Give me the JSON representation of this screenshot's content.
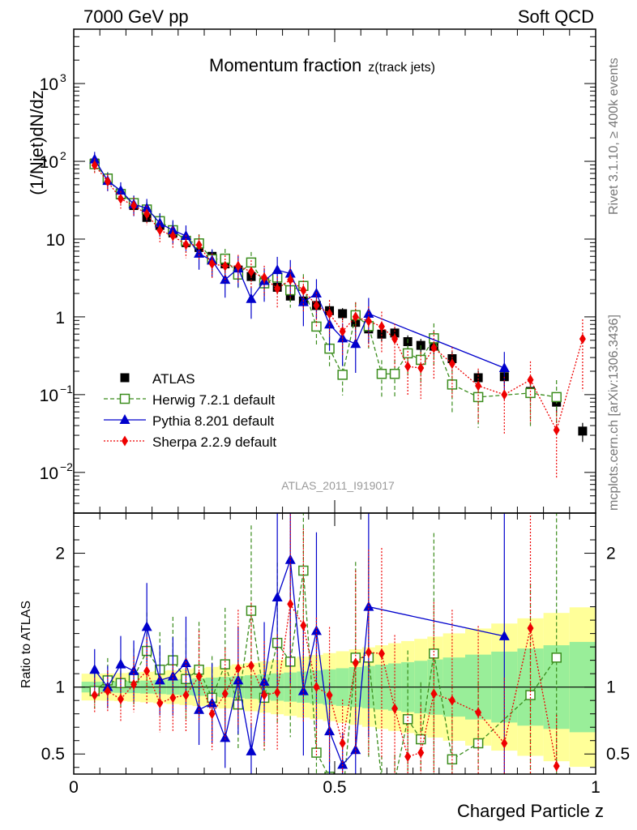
{
  "header": {
    "left": "7000 GeV pp",
    "right": "Soft QCD"
  },
  "side_text": {
    "rivet": "Rivet 3.1.10, ≥ 400k events",
    "mcplots": "mcplots.cern.ch [arXiv:1306.3436]"
  },
  "chart_data": [
    {
      "type": "scatter",
      "panel": "main",
      "title": "Momentum fraction",
      "title_sub": "z(track jets)",
      "ylabel": "(1/Njet)dN/dz",
      "yscale": "log",
      "ylim": [
        0.003,
        5000
      ],
      "xlim": [
        0,
        1
      ],
      "watermark": "ATLAS_2011_I919017",
      "y_ticks": [
        "10^{-2}",
        "10^{-1}",
        "1",
        "10",
        "10^{2}",
        "10^{3}"
      ],
      "legend": [
        "ATLAS",
        "Herwig 7.2.1 default",
        "Pythia 8.201 default",
        "Sherpa 2.2.9 default"
      ],
      "legend_position": "center-left",
      "colors": {
        "atlas": "#000000",
        "herwig": "#3a8c1c",
        "pythia": "#0000cc",
        "sherpa": "#ee0000"
      },
      "x": [
        0.04,
        0.065,
        0.09,
        0.115,
        0.14,
        0.165,
        0.19,
        0.215,
        0.24,
        0.265,
        0.29,
        0.315,
        0.34,
        0.365,
        0.39,
        0.415,
        0.44,
        0.465,
        0.49,
        0.515,
        0.54,
        0.565,
        0.59,
        0.615,
        0.64,
        0.665,
        0.69,
        0.725,
        0.775,
        0.825,
        0.875,
        0.925,
        0.975
      ],
      "series": [
        {
          "name": "ATLAS",
          "values": [
            95,
            57,
            37,
            27,
            19,
            15,
            12,
            9.0,
            7.8,
            6.0,
            4.8,
            4.0,
            3.3,
            2.8,
            2.4,
            1.85,
            1.6,
            1.4,
            1.2,
            1.1,
            0.85,
            0.7,
            0.6,
            0.62,
            0.48,
            0.43,
            0.42,
            0.29,
            0.165,
            0.17,
            0.11,
            0.08,
            0.034
          ]
        },
        {
          "name": "Herwig 7.2.1 default",
          "values": [
            92,
            60,
            38,
            29,
            24,
            17,
            13,
            9.5,
            8.8,
            5.5,
            5.6,
            3.5,
            5.0,
            2.7,
            3.2,
            2.2,
            2.5,
            0.75,
            0.39,
            0.18,
            1.05,
            0.76,
            0.185,
            0.185,
            0.34,
            0.28,
            0.53,
            0.135,
            0.093,
            null,
            0.105,
            0.093,
            null
          ]
        },
        {
          "name": "Pythia 8.201 default",
          "values": [
            106,
            56,
            42,
            28,
            25,
            16,
            13,
            11,
            6.5,
            5.3,
            3.0,
            4.2,
            1.7,
            2.9,
            4.0,
            3.6,
            1.55,
            2.0,
            0.8,
            0.53,
            0.45,
            1.1,
            null,
            null,
            null,
            null,
            null,
            null,
            null,
            0.22,
            null,
            null,
            null
          ]
        },
        {
          "name": "Sherpa 2.2.9 default",
          "values": [
            89,
            55,
            33,
            27,
            21,
            13,
            11,
            8.5,
            8.4,
            4.8,
            4.5,
            4.5,
            3.8,
            3.2,
            2.3,
            3.0,
            2.2,
            1.4,
            1.1,
            0.65,
            1.0,
            0.88,
            0.75,
            0.52,
            0.23,
            0.22,
            0.4,
            0.25,
            0.13,
            0.1,
            0.155,
            0.035,
            0.52
          ]
        }
      ]
    },
    {
      "type": "line",
      "panel": "ratio",
      "ylabel": "Ratio to ATLAS",
      "xlabel": "Charged Particle z",
      "ylim": [
        0.35,
        2.3
      ],
      "xlim": [
        0,
        1
      ],
      "x_ticks": [
        "0",
        "0.5",
        "1"
      ],
      "y_ticks": [
        "0.5",
        "1",
        "2"
      ],
      "x": [
        0.04,
        0.065,
        0.09,
        0.115,
        0.14,
        0.165,
        0.19,
        0.215,
        0.24,
        0.265,
        0.29,
        0.315,
        0.34,
        0.365,
        0.39,
        0.415,
        0.44,
        0.465,
        0.49,
        0.515,
        0.54,
        0.565,
        0.59,
        0.615,
        0.64,
        0.665,
        0.69,
        0.725,
        0.775,
        0.825,
        0.875,
        0.925
      ],
      "series": [
        {
          "name": "Herwig 7.2.1 default",
          "values": [
            0.97,
            1.05,
            1.03,
            1.07,
            1.27,
            1.13,
            1.2,
            1.06,
            1.13,
            0.92,
            1.17,
            0.87,
            1.57,
            0.92,
            1.33,
            1.19,
            1.87,
            0.51,
            0.33,
            0.16,
            1.22,
            1.22,
            0.3,
            0.3,
            0.76,
            0.61,
            1.25,
            0.46,
            0.58,
            null,
            0.94,
            1.22
          ]
        },
        {
          "name": "Pythia 8.201 default",
          "values": [
            1.13,
            1.0,
            1.17,
            1.12,
            1.45,
            1.05,
            1.08,
            1.18,
            0.83,
            0.88,
            0.62,
            1.05,
            0.52,
            1.04,
            1.67,
            1.95,
            0.97,
            1.42,
            0.67,
            0.42,
            0.53,
            1.6,
            null,
            null,
            null,
            null,
            null,
            null,
            null,
            1.38,
            null,
            null
          ]
        },
        {
          "name": "Sherpa 2.2.9 default",
          "values": [
            0.94,
            0.97,
            0.91,
            1.02,
            1.12,
            0.88,
            0.92,
            0.94,
            1.08,
            0.8,
            0.95,
            1.14,
            1.16,
            0.94,
            0.96,
            1.62,
            1.46,
            1.0,
            0.94,
            0.58,
            1.18,
            1.26,
            1.25,
            0.84,
            0.48,
            0.51,
            0.95,
            0.9,
            0.81,
            0.58,
            1.44,
            0.41
          ]
        }
      ]
    }
  ]
}
